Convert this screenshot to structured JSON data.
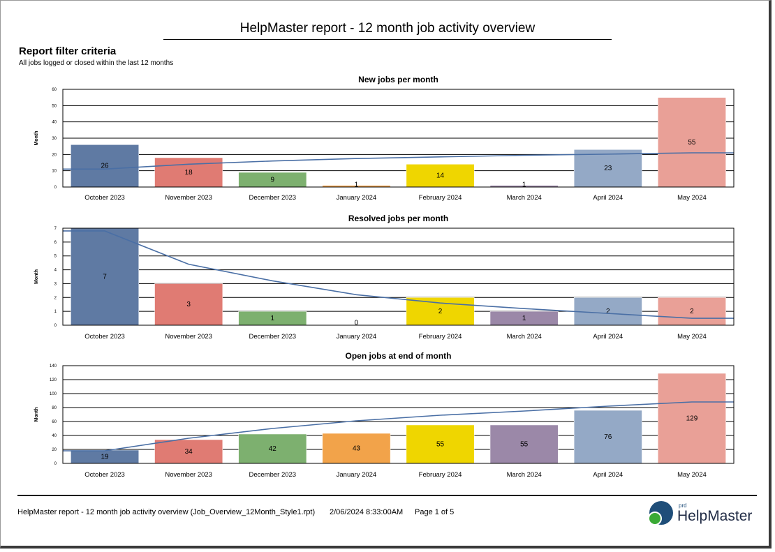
{
  "report": {
    "title": "HelpMaster report - 12 month job activity overview",
    "filter_heading": "Report filter criteria",
    "filter_text": "All jobs logged or closed within the last 12  months"
  },
  "chart_data": [
    {
      "type": "bar",
      "title": "New jobs per month",
      "ylabel": "Month",
      "xlabel": "",
      "ylim": [
        0,
        60
      ],
      "yticks": [
        0,
        10,
        20,
        30,
        40,
        50,
        60
      ],
      "categories": [
        "October 2023",
        "November 2023",
        "December 2023",
        "January 2024",
        "February 2024",
        "March 2024",
        "April 2024",
        "May 2024"
      ],
      "values": [
        26,
        18,
        9,
        1,
        14,
        1,
        23,
        55
      ],
      "colors": [
        "#5f7aa3",
        "#e07b73",
        "#7db06f",
        "#f2a34a",
        "#efd600",
        "#9b88a8",
        "#94a9c6",
        "#e9a097"
      ],
      "trendline": [
        11,
        14,
        16,
        17.5,
        18.5,
        19.5,
        20.2,
        21
      ],
      "grid": true
    },
    {
      "type": "bar",
      "title": "Resolved jobs per month",
      "ylabel": "Month",
      "xlabel": "",
      "ylim": [
        0,
        7
      ],
      "yticks": [
        0,
        1,
        2,
        3,
        4,
        5,
        6,
        7
      ],
      "categories": [
        "October 2023",
        "November 2023",
        "December 2023",
        "January 2024",
        "February 2024",
        "March 2024",
        "April 2024",
        "May 2024"
      ],
      "values": [
        7,
        3,
        1,
        0,
        2,
        1,
        2,
        2
      ],
      "colors": [
        "#5f7aa3",
        "#e07b73",
        "#7db06f",
        "#f2a34a",
        "#efd600",
        "#9b88a8",
        "#94a9c6",
        "#e9a097"
      ],
      "trendline": [
        6.8,
        4.4,
        3.2,
        2.2,
        1.6,
        1.2,
        0.85,
        0.5
      ],
      "grid": true
    },
    {
      "type": "bar",
      "title": "Open jobs at end of month",
      "ylabel": "Month",
      "xlabel": "",
      "ylim": [
        0,
        140
      ],
      "yticks": [
        0,
        20,
        40,
        60,
        80,
        100,
        120,
        140
      ],
      "categories": [
        "October 2023",
        "November 2023",
        "December 2023",
        "January 2024",
        "February 2024",
        "March 2024",
        "April 2024",
        "May 2024"
      ],
      "values": [
        19,
        34,
        42,
        43,
        55,
        55,
        76,
        129
      ],
      "colors": [
        "#5f7aa3",
        "#e07b73",
        "#7db06f",
        "#f2a34a",
        "#efd600",
        "#9b88a8",
        "#94a9c6",
        "#e9a097"
      ],
      "trendline": [
        18,
        36,
        50,
        61,
        69,
        75,
        82,
        88
      ],
      "grid": true
    }
  ],
  "footer": {
    "report_file": "HelpMaster report - 12 month job activity overview (Job_Overview_12Month_Style1.rpt)",
    "datetime": "2/06/2024  8:33:00AM",
    "page": "Page 1 of 5"
  },
  "logo": {
    "prefix": "prd",
    "name": "HelpMaster"
  }
}
